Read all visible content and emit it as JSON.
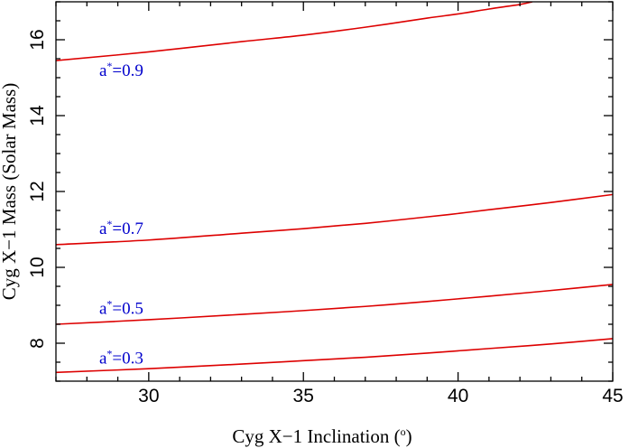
{
  "chart_data": {
    "type": "line",
    "title": "",
    "xlabel": "Cyg X−1 Inclination (",
    "xlabel_unit": "o",
    "xlabel_close": ")",
    "ylabel": "Cyg X−1 Mass (Solar Mass)",
    "xlim": [
      27,
      45
    ],
    "ylim": [
      7,
      17
    ],
    "x_ticks": [
      30,
      35,
      40,
      45
    ],
    "y_ticks": [
      8,
      10,
      12,
      14,
      16
    ],
    "grid": false,
    "series_color": "#dd0000",
    "label_color": "#0000cc",
    "series": [
      {
        "label_main": "a",
        "label_sup": "*",
        "label_value": "=0.9",
        "label_x": 28.4,
        "label_y": 15.05,
        "x": [
          27,
          30,
          33,
          35,
          37,
          39,
          40,
          41,
          42,
          42.4
        ],
        "y": [
          15.45,
          15.68,
          15.95,
          16.12,
          16.33,
          16.57,
          16.68,
          16.81,
          16.93,
          17.0
        ]
      },
      {
        "label_main": "a",
        "label_sup": "*",
        "label_value": "=0.7",
        "label_x": 28.4,
        "label_y": 10.88,
        "x": [
          27,
          30,
          33,
          35,
          37,
          39,
          40,
          41,
          43,
          45
        ],
        "y": [
          10.6,
          10.72,
          10.9,
          11.02,
          11.16,
          11.33,
          11.42,
          11.52,
          11.71,
          11.92
        ]
      },
      {
        "label_main": "a",
        "label_sup": "*",
        "label_value": "=0.5",
        "label_x": 28.4,
        "label_y": 8.77,
        "x": [
          27,
          30,
          33,
          35,
          37,
          39,
          40,
          41,
          43,
          45
        ],
        "y": [
          8.5,
          8.62,
          8.76,
          8.86,
          8.97,
          9.1,
          9.17,
          9.24,
          9.39,
          9.55
        ]
      },
      {
        "label_main": "a",
        "label_sup": "*",
        "label_value": "=0.3",
        "label_x": 28.4,
        "label_y": 7.47,
        "x": [
          27,
          30,
          33,
          35,
          37,
          39,
          40,
          41,
          43,
          45
        ],
        "y": [
          7.23,
          7.33,
          7.45,
          7.54,
          7.63,
          7.74,
          7.8,
          7.86,
          7.98,
          8.12
        ]
      }
    ]
  }
}
